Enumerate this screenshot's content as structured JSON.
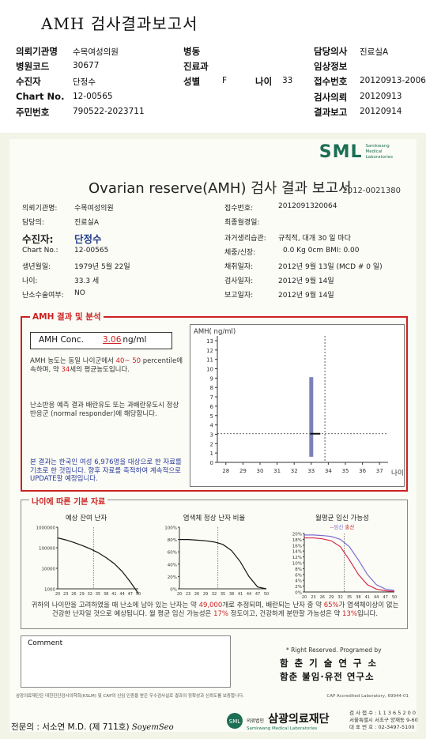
{
  "header": {
    "title": "AMH 검사결과보고서",
    "rows": [
      [
        {
          "label": "의뢰기관명",
          "value": "수목여성의원"
        },
        {
          "label": "병동",
          "value": ""
        },
        {
          "label": "담당의사",
          "value": "진료실A"
        }
      ],
      [
        {
          "label": "병원코드",
          "value": "30677"
        },
        {
          "label": "진료과",
          "value": ""
        },
        {
          "label": "임상정보",
          "value": ""
        }
      ],
      [
        {
          "label": "수진자",
          "value": "단정수"
        },
        {
          "label": "성별",
          "value": "F"
        },
        {
          "label": "나이",
          "value": "33"
        },
        {
          "label": "접수번호",
          "value": "20120913-20064"
        }
      ],
      [
        {
          "label": "Chart No.",
          "value": "12-00565"
        },
        {
          "label": "검사의뢰",
          "value": "20120913"
        }
      ],
      [
        {
          "label": "주민번호",
          "value": "790522-2023711"
        },
        {
          "label": "결과보고",
          "value": "20120914"
        }
      ]
    ]
  },
  "report": {
    "logo": "SML",
    "logo_sub": [
      "Samkwang",
      "Medical",
      "Laboratories"
    ],
    "title": "Ovarian reserve(AMH) 검사 결과 보고서",
    "number": "2012-0021380",
    "left_info": [
      {
        "label": "의뢰기관명:",
        "value": "수목여성의원"
      },
      {
        "label": "담당의:",
        "value": "진료실A"
      },
      {
        "label": "수진자:",
        "value": "단정수"
      },
      {
        "label": "Chart No.:",
        "value": "12-00565"
      },
      {
        "label": "생년월일:",
        "value": "1979년 5월 22일"
      },
      {
        "label": "나이:",
        "value": "33.3 세"
      },
      {
        "label": "난소수술여부:",
        "value": "NO"
      }
    ],
    "right_info": [
      {
        "label": "접수번호:",
        "value": "2012091320064"
      },
      {
        "label": "최종월경일:",
        "value": ""
      },
      {
        "label": "과거생리습관:",
        "value": "규칙적,  대개  30 일 마다"
      },
      {
        "label": "체중/신장:",
        "value": "0.0  Kg        0cm    BMI:     0.00"
      },
      {
        "label": "채취일자:",
        "value": "2012년 9월 13일  (MCD # 0 일)"
      },
      {
        "label": "검사일자:",
        "value": "2012년 9월 14일"
      },
      {
        "label": "보고일자:",
        "value": "2012년 9월 14일"
      }
    ]
  },
  "amh": {
    "section_title": "AMH 결과 및 분석",
    "conc_label": "AMH Conc.",
    "conc_value": "3.06",
    "conc_unit": "ng/ml",
    "para1": [
      {
        "t": "AMH 농도는 동일 나이군에서 "
      },
      {
        "t": "40~ 50",
        "r": true
      },
      {
        "t": " percentile에 속하며, 약 "
      },
      {
        "t": "34",
        "r": true
      },
      {
        "t": "세의 평균농도입니다."
      }
    ],
    "para2": "난소반응 예측 결과 배란유도 또는 과배란유도시 정상반응군 (normal responder)에 해당합니다.",
    "para3": "본 결과는 한국인 여성 6,976명을 대상으로 한 자료를 기초로 한 것입니다. 향후 자료를 축적하여 계속적으로 UPDATE할 예정입니다."
  },
  "chart_data": [
    {
      "type": "scatter",
      "title": "",
      "ylabel": "AMH( ng/ml)",
      "xlabel": "나이",
      "x_ticks": [
        28,
        29,
        30,
        31,
        32,
        33,
        34,
        35,
        36,
        37
      ],
      "y_ticks": [
        0,
        1,
        2,
        3,
        4,
        5,
        6,
        7,
        8,
        9,
        10,
        11,
        12,
        13
      ],
      "xlim": [
        27.5,
        37.5
      ],
      "ylim": [
        0,
        13
      ],
      "range_bar": {
        "x": 33,
        "y_min": 0.6,
        "y_max": 9.1,
        "color": "#7b82b8"
      },
      "point": {
        "x": 33.3,
        "y": 3.06
      },
      "reference_lines": {
        "x": 33.8,
        "y": 3.06
      },
      "colors": {
        "bar": "#7b82b8",
        "axis": "#333"
      }
    },
    {
      "type": "line",
      "title": "예상 잔여 난자",
      "x_ticks": [
        "20",
        "23",
        "26",
        "29",
        "32",
        "35",
        "38",
        "41",
        "44",
        "47",
        "50"
      ],
      "y_ticks": [
        "1000000",
        "100000",
        "10000",
        "1000"
      ],
      "y_scale": "log",
      "x": [
        20,
        23,
        26,
        29,
        32,
        35,
        38,
        41,
        44,
        47,
        50
      ],
      "values": [
        300000,
        240000,
        180000,
        130000,
        90000,
        58000,
        33000,
        17000,
        7000,
        2200,
        600
      ]
    },
    {
      "type": "line",
      "title": "염색체 정상 난자 비율",
      "x_ticks": [
        "20",
        "23",
        "26",
        "29",
        "32",
        "35",
        "38",
        "41",
        "44",
        "47",
        "50"
      ],
      "y_ticks": [
        "100%",
        "80%",
        "60%",
        "40%",
        "20%",
        "0%"
      ],
      "x": [
        20,
        23,
        26,
        29,
        32,
        35,
        38,
        41,
        44,
        47,
        50
      ],
      "values": [
        80,
        80,
        79,
        78,
        76,
        72,
        62,
        44,
        20,
        3,
        0
      ]
    },
    {
      "type": "line",
      "title": "월평균 임신 가능성",
      "legend": [
        "임신",
        "출산"
      ],
      "x_ticks": [
        "20",
        "23",
        "26",
        "29",
        "32",
        "35",
        "38",
        "41",
        "44",
        "47",
        "50"
      ],
      "y_ticks": [
        "20%",
        "18%",
        "16%",
        "14%",
        "12%",
        "10%",
        "8%",
        "6%",
        "4%",
        "2%",
        "0%"
      ],
      "x": [
        20,
        23,
        26,
        29,
        32,
        35,
        38,
        41,
        44,
        47,
        50
      ],
      "series": [
        {
          "name": "임신",
          "values": [
            19.5,
            19.5,
            19.3,
            19,
            18,
            15.5,
            11,
            6,
            2.5,
            1,
            0.5
          ]
        },
        {
          "name": "출산",
          "values": [
            18.5,
            18.5,
            18.2,
            17.5,
            15.5,
            11,
            6,
            2.5,
            1,
            0.4,
            0.2
          ]
        }
      ]
    }
  ],
  "age": {
    "section_title": "나이에 따른 기본 자료",
    "summary": [
      {
        "t": "귀하의 나이만을 고려하였을 때 난소에 남아 있는 난자는 약 "
      },
      {
        "t": "49,000",
        "r": true
      },
      {
        "t": "개로 추정되며, 배란되는 난자 중 약 "
      },
      {
        "t": "65%",
        "r": true
      },
      {
        "t": "가 염색체이상이 없는 건강한 난자일 것으로 예상됩니다. 월 평균 임신 가능성은 "
      },
      {
        "t": "17%",
        "r": true
      },
      {
        "t": " 정도이고, 건강하게 분만할 가능성은 약 "
      },
      {
        "t": "13%",
        "r": true
      },
      {
        "t": "입니다."
      }
    ]
  },
  "comment_label": "Comment",
  "rights": "* Right Reserved.  Programed by",
  "inst1": "함 춘  기 술  연 구 소",
  "inst2": "함춘 불임·유전 연구소",
  "footnote": "삼광의료재단은 대한진단검사의학회(KSLM) 및 CAP의 신임 인증을 받은 우수검사실로 결과의 정확성과 신뢰도를 보증합니다.",
  "cap": "CAP  Accredited  Laboratory,  69944-01",
  "signature": {
    "label": "전문의 : 서소연 M.D. (제 711호)",
    "sig": "SoyemSeo"
  },
  "foundation": {
    "name": "삼광의료재단",
    "en": "Samkwang Medical Laboratories",
    "prefix": "의료법인"
  },
  "contact": [
    "검 사 접 수 : 1 1 3 6 5 2 0 0",
    "서울특별시 서초구 양재동 9-60",
    "대 표 번 호 : 02-3497-5100"
  ]
}
